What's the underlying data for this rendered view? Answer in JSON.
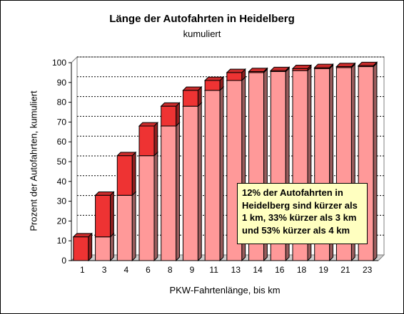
{
  "chart_data": {
    "type": "bar",
    "title": "Länge der Autofahrten in Heidelberg",
    "subtitle": "kumuliert",
    "xlabel": "PKW-Fahrtenlänge, bis km",
    "ylabel": "Prozent der Autofahrten, kumuliert",
    "ylim": [
      0,
      100
    ],
    "yticks": [
      0,
      10,
      20,
      30,
      40,
      50,
      60,
      70,
      80,
      90,
      100
    ],
    "grid": "dashed horizontal",
    "categories": [
      "1",
      "3",
      "4",
      "6",
      "8",
      "9",
      "11",
      "13",
      "14",
      "16",
      "18",
      "19",
      "21",
      "23"
    ],
    "series": [
      {
        "values": [
          0,
          12,
          33,
          53,
          68,
          78,
          86,
          91,
          95,
          95.5,
          96,
          97,
          97.5,
          98
        ],
        "color": "#ff9999"
      },
      {
        "values": [
          12,
          33,
          53,
          68,
          78,
          86,
          91,
          95,
          95.5,
          96,
          97,
          97.5,
          98,
          98.5
        ],
        "color": "#ee3333"
      }
    ],
    "annotation": {
      "lines": [
        "12% der Autofahrten in",
        "Heidelberg sind kürzer als",
        "1 km, 33% kürzer als 3 km",
        "und 53% kürzer als 4 km"
      ],
      "background": "#ffffc0"
    }
  }
}
